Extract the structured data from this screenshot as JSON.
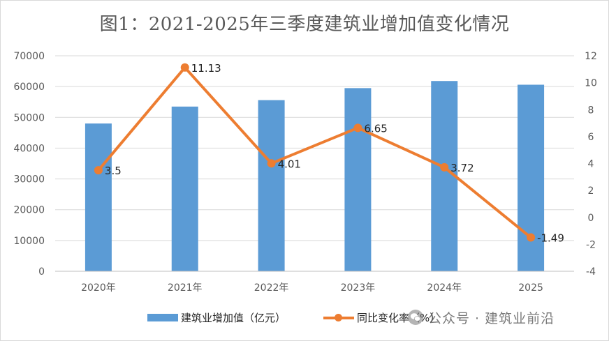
{
  "chart_data": {
    "type": "bar+line",
    "title": "图1：2021-2025年三季度建筑业增加值变化情况",
    "categories": [
      "2020年",
      "2021年",
      "2022年",
      "2023年",
      "2024年",
      "2025"
    ],
    "series": [
      {
        "name": "建筑业增加值（亿元）",
        "type": "bar",
        "axis": "left",
        "color": "#5b9bd5",
        "values": [
          48000,
          53500,
          55600,
          59500,
          61800,
          60600
        ]
      },
      {
        "name": "同比变化率（%）",
        "type": "line",
        "axis": "right",
        "color": "#ed7d31",
        "values": [
          3.5,
          11.13,
          4.01,
          6.65,
          3.72,
          -1.49
        ],
        "labels": [
          "3.5",
          "11.13",
          "4.01",
          "6.65",
          "3.72",
          "-1.49"
        ]
      }
    ],
    "left_axis": {
      "min": 0,
      "max": 70000,
      "ticks": [
        "0",
        "10000",
        "20000",
        "30000",
        "40000",
        "50000",
        "60000",
        "70000"
      ]
    },
    "right_axis": {
      "min": -4,
      "max": 12,
      "ticks": [
        "-4",
        "-2",
        "0",
        "2",
        "4",
        "6",
        "8",
        "10",
        "12"
      ]
    },
    "gridlines": true,
    "legend_position": "bottom"
  },
  "watermark": {
    "text": "公众号 · 建筑业前沿",
    "icon": "wechat-icon"
  }
}
